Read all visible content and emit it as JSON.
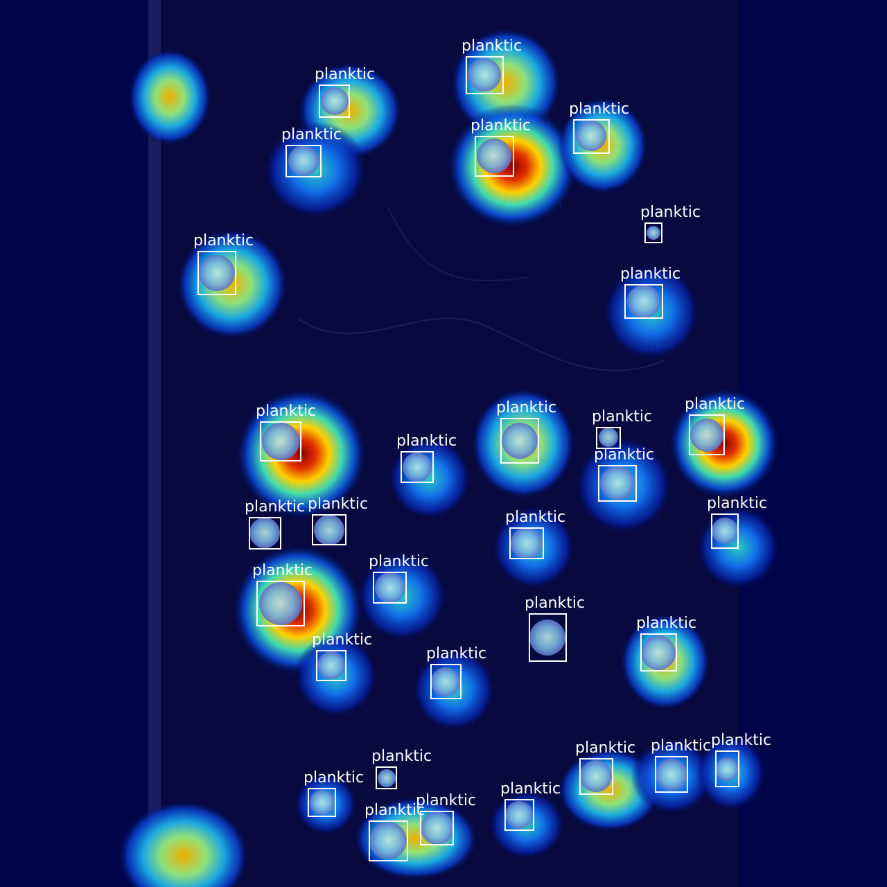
{
  "scene": {
    "description_free": true,
    "colors": {
      "background": "#00054a",
      "slide": "#07093f",
      "box": "#ffffff",
      "label": "#ffffff"
    }
  },
  "detections": [
    {
      "label": "planktic"
    },
    {
      "label": "planktic"
    },
    {
      "label": "planktic"
    },
    {
      "label": "planktic"
    },
    {
      "label": "planktic"
    },
    {
      "label": "planktic"
    },
    {
      "label": "planktic"
    },
    {
      "label": "planktic"
    },
    {
      "label": "planktic"
    },
    {
      "label": "planktic"
    },
    {
      "label": "planktic"
    },
    {
      "label": "planktic"
    },
    {
      "label": "planktic"
    },
    {
      "label": "planktic"
    },
    {
      "label": "planktic"
    },
    {
      "label": "planktic"
    },
    {
      "label": "planktic"
    },
    {
      "label": "planktic"
    },
    {
      "label": "planktic"
    },
    {
      "label": "planktic"
    },
    {
      "label": "planktic"
    },
    {
      "label": "planktic"
    },
    {
      "label": "planktic"
    },
    {
      "label": "planktic"
    },
    {
      "label": "planktic"
    },
    {
      "label": "planktic"
    },
    {
      "label": "planktic"
    },
    {
      "label": "planktic"
    },
    {
      "label": "planktic"
    },
    {
      "label": "planktic"
    },
    {
      "label": "planktic"
    },
    {
      "label": "planktic"
    },
    {
      "label": "planktic"
    },
    {
      "label": "planktic"
    },
    {
      "label": "planktic"
    },
    {
      "label": "planktic"
    }
  ]
}
